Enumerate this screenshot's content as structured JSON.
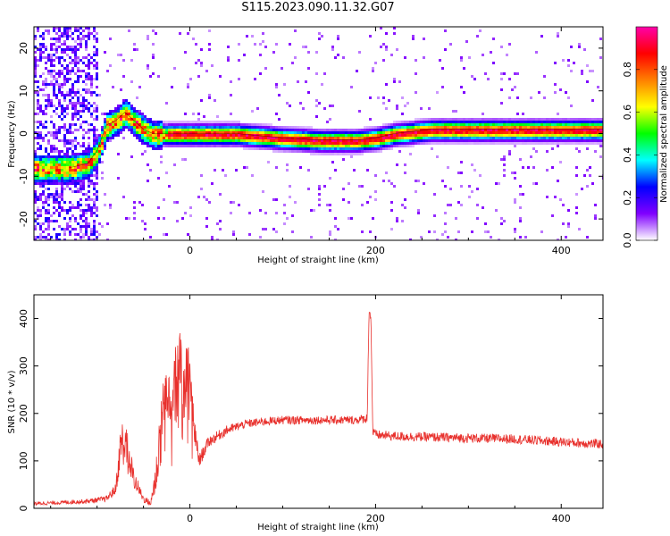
{
  "title": "S115.2023.090.11.32.G07",
  "chart_data": [
    {
      "type": "heatmap",
      "xlabel": "Height of straight line (km)",
      "ylabel": "Frequency (Hz)",
      "xlim": [
        -168,
        445
      ],
      "ylim": [
        -25,
        25
      ],
      "xticks": [
        0,
        200,
        400
      ],
      "yticks": [
        -20,
        -10,
        0,
        10,
        20
      ],
      "colorbar": {
        "label": "Normalized spectral amplitude",
        "range": [
          0,
          1
        ],
        "ticks": [
          0.0,
          0.2,
          0.4,
          0.6,
          0.8
        ],
        "colormap": [
          "#ffffff",
          "#8000ff",
          "#0000ff",
          "#00ffff",
          "#00ff00",
          "#ffff00",
          "#ff8000",
          "#ff0000",
          "#ff00aa"
        ]
      },
      "ridge": {
        "x": [
          -130,
          -110,
          -100,
          -90,
          -80,
          -70,
          -60,
          -50,
          -40,
          -20,
          0,
          50,
          100,
          140,
          180,
          200,
          220,
          240,
          260,
          300,
          350,
          400,
          445
        ],
        "y": [
          -8,
          -7,
          -4,
          2,
          3,
          5,
          3,
          1,
          0,
          0,
          0,
          0,
          -1,
          -1.5,
          -1.5,
          -1,
          0,
          0.5,
          1,
          1,
          1,
          1,
          1
        ]
      },
      "noise_region_x": [
        -168,
        -100
      ]
    },
    {
      "type": "line",
      "xlabel": "Height of straight line (km)",
      "ylabel": "SNR (10 * v/v)",
      "xlim": [
        -168,
        445
      ],
      "ylim": [
        0,
        450
      ],
      "xticks": [
        0,
        200,
        400
      ],
      "yticks": [
        0,
        100,
        200,
        300,
        400
      ],
      "color": "#e8302c",
      "x": [
        -168,
        -140,
        -110,
        -90,
        -80,
        -74,
        -68,
        -60,
        -50,
        -42,
        -36,
        -30,
        -24,
        -18,
        -14,
        -10,
        -6,
        -2,
        0,
        5,
        10,
        20,
        40,
        60,
        80,
        100,
        120,
        150,
        180,
        191,
        193,
        195,
        197,
        200,
        220,
        260,
        300,
        350,
        400,
        445
      ],
      "y": [
        10,
        12,
        15,
        20,
        40,
        140,
        130,
        60,
        20,
        10,
        80,
        220,
        240,
        280,
        330,
        280,
        250,
        310,
        270,
        160,
        100,
        140,
        165,
        178,
        183,
        186,
        186,
        186,
        186,
        190,
        420,
        400,
        160,
        155,
        152,
        150,
        148,
        146,
        140,
        135
      ],
      "noise_amplitude": [
        4,
        4,
        5,
        6,
        12,
        50,
        40,
        20,
        8,
        6,
        50,
        70,
        80,
        80,
        100,
        80,
        70,
        60,
        40,
        30,
        15,
        12,
        10,
        9,
        9,
        9,
        9,
        9,
        9,
        10,
        10,
        10,
        10,
        10,
        10,
        10,
        10,
        10,
        10,
        10
      ]
    }
  ]
}
